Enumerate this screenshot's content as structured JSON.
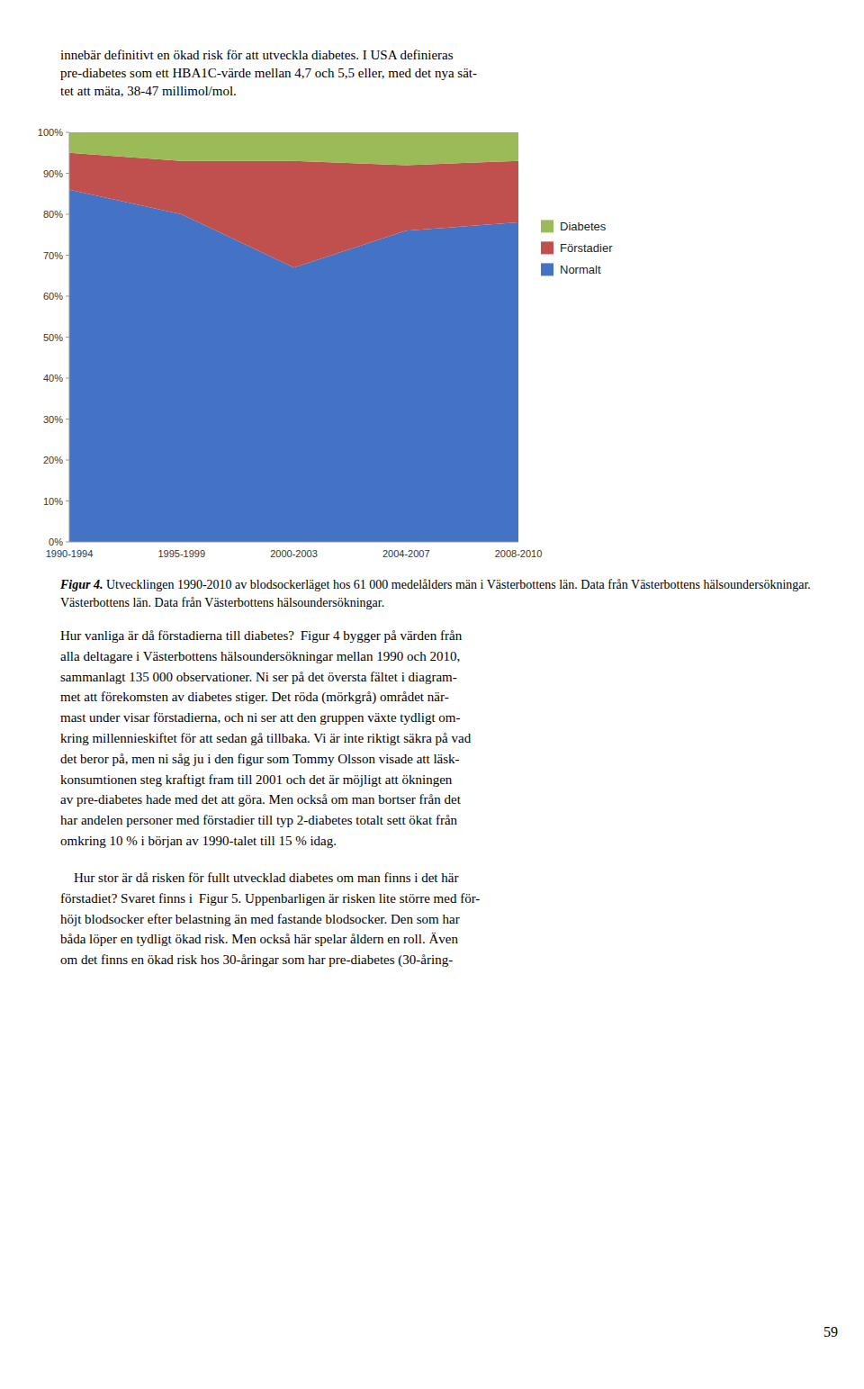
{
  "page": {
    "top_text": [
      "innebär definitivt en ökad risk för att utveckla diabetes. I USA definieras",
      "pre-diabetes som ett HBA1C-värde mellan 4,7 och 5,5 eller, med det nya sät-",
      "tet att mäta, 38-47 millimol/mol."
    ],
    "caption_label": "Figur 4.",
    "caption_lines": [
      " Utvecklingen 1990-2010 av blodsockerläget hos 61 000 medelålders män i Västerbottens län. Data från Västerbottens hälsoundersökningar.",
      "Västerbottens län. Data från Västerbottens hälsoundersökningar."
    ],
    "body_paragraphs": [
      [
        "Hur vanliga är då förstadierna till diabetes?  Figur 4 bygger på värden från",
        "alla deltagare i Västerbottens hälsoundersökningar mellan 1990 och 2010,",
        "sammanlagt 135 000 observationer. Ni ser på det översta fältet i diagram-",
        "met att förekomsten av diabetes stiger. Det röda (mörkgrå) området när-",
        "mast under visar förstadierna, och ni ser att den gruppen växte tydligt om-",
        "kring millennieskiftet för att sedan gå tillbaka. Vi är inte riktigt säkra på vad",
        "det beror på, men ni såg ju i den figur som Tommy Olsson visade att läsk-",
        "konsumtionen steg kraftigt fram till 2001 och det är möjligt att ökningen",
        "av pre-diabetes hade med det att göra. Men också om man bortser från det",
        "har andelen personer med förstadier till typ 2-diabetes totalt sett ökat från",
        "omkring 10 % i början av 1990-talet till 15 % idag."
      ],
      [
        "    Hur stor är då risken för fullt utvecklad diabetes om man finns i det här",
        "förstadiet? Svaret finns i  Figur 5. Uppenbarligen är risken lite större med för-",
        "höjt blodsocker efter belastning än med fastande blodsocker. Den som har",
        "båda löper en tydligt ökad risk. Men också här spelar åldern en roll. Även",
        "om det finns en ökad risk hos 30-åringar som har pre-diabetes (30-åring-"
      ]
    ],
    "page_number": "59"
  },
  "chart_data": {
    "type": "area",
    "stacked": true,
    "legend": "right",
    "grid": false,
    "categories": [
      "1990-1994",
      "1995-1999",
      "2000-2003",
      "2004-2007",
      "2008-2010"
    ],
    "series": [
      {
        "name": "Normalt",
        "color": "#4472C4",
        "values": [
          86,
          80,
          67,
          76,
          78
        ]
      },
      {
        "name": "Förstadier",
        "color": "#C0504D",
        "values": [
          9,
          13,
          26,
          16,
          15
        ]
      },
      {
        "name": "Diabetes",
        "color": "#9BBB59",
        "values": [
          5,
          7,
          7,
          8,
          7
        ]
      }
    ],
    "ylim": [
      0,
      100
    ],
    "yticks": [
      {
        "value": 0,
        "label": "0%"
      },
      {
        "value": 10,
        "label": "10%"
      },
      {
        "value": 20,
        "label": "20%"
      },
      {
        "value": 30,
        "label": "30%"
      },
      {
        "value": 40,
        "label": "40%"
      },
      {
        "value": 50,
        "label": "50%"
      },
      {
        "value": 60,
        "label": "60%"
      },
      {
        "value": 70,
        "label": "70%"
      },
      {
        "value": 80,
        "label": "80%"
      },
      {
        "value": 90,
        "label": "90%"
      },
      {
        "value": 100,
        "label": "100%"
      }
    ]
  }
}
